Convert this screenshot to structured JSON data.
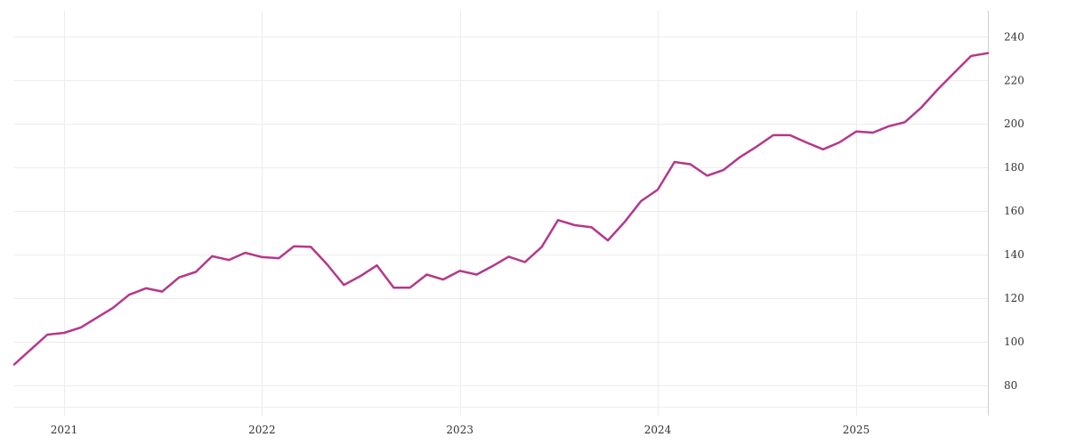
{
  "chart_data": {
    "type": "line",
    "title": "",
    "xlabel": "",
    "ylabel": "",
    "grid": true,
    "legend": "none",
    "xlim": [
      "2020-10-01",
      "2025-09-01"
    ],
    "ylim": [
      66,
      252
    ],
    "x_ticks": [
      {
        "label": "2021",
        "date": "2021-01-01"
      },
      {
        "label": "2022",
        "date": "2022-01-01"
      },
      {
        "label": "2023",
        "date": "2023-01-01"
      },
      {
        "label": "2024",
        "date": "2024-01-01"
      },
      {
        "label": "2025",
        "date": "2025-01-01"
      }
    ],
    "y_ticks": [
      80,
      100,
      120,
      140,
      160,
      180,
      200,
      220,
      240
    ],
    "series": [
      {
        "color": "#b5378b",
        "x": [
          "2020-10-01",
          "2020-11-01",
          "2020-12-01",
          "2021-01-01",
          "2021-02-01",
          "2021-03-01",
          "2021-04-01",
          "2021-05-01",
          "2021-06-01",
          "2021-07-01",
          "2021-08-01",
          "2021-09-01",
          "2021-10-01",
          "2021-11-01",
          "2021-12-01",
          "2022-01-01",
          "2022-02-01",
          "2022-03-01",
          "2022-04-01",
          "2022-05-01",
          "2022-06-01",
          "2022-07-01",
          "2022-08-01",
          "2022-09-01",
          "2022-10-01",
          "2022-11-01",
          "2022-12-01",
          "2023-01-01",
          "2023-02-01",
          "2023-03-01",
          "2023-04-01",
          "2023-05-01",
          "2023-06-01",
          "2023-07-01",
          "2023-08-01",
          "2023-09-01",
          "2023-10-01",
          "2023-11-01",
          "2023-12-01",
          "2024-01-01",
          "2024-02-01",
          "2024-03-01",
          "2024-04-01",
          "2024-05-01",
          "2024-06-01",
          "2024-07-01",
          "2024-08-01",
          "2024-09-01",
          "2024-10-01",
          "2024-11-01",
          "2024-12-01",
          "2025-01-01",
          "2025-02-01",
          "2025-03-01",
          "2025-04-01",
          "2025-05-01",
          "2025-06-01",
          "2025-07-01",
          "2025-08-01",
          "2025-09-01"
        ],
        "values": [
          89.5,
          96.5,
          103.2,
          104.0,
          106.5,
          110.8,
          115.5,
          121.5,
          124.5,
          123.0,
          129.5,
          132.0,
          139.2,
          137.5,
          140.8,
          138.8,
          138.3,
          143.8,
          143.5,
          135.5,
          126.0,
          130.0,
          135.0,
          124.8,
          124.8,
          130.8,
          128.5,
          132.5,
          130.8,
          134.5,
          139.0,
          136.5,
          143.5,
          155.8,
          153.5,
          152.5,
          146.5,
          155.0,
          164.5,
          169.8,
          182.5,
          181.5,
          176.2,
          178.8,
          184.8,
          189.5,
          194.8,
          194.8,
          191.5,
          188.3,
          191.5,
          196.5,
          196.0,
          198.8,
          200.8,
          207.5,
          216.0,
          223.5,
          231.2,
          232.5
        ]
      }
    ]
  }
}
